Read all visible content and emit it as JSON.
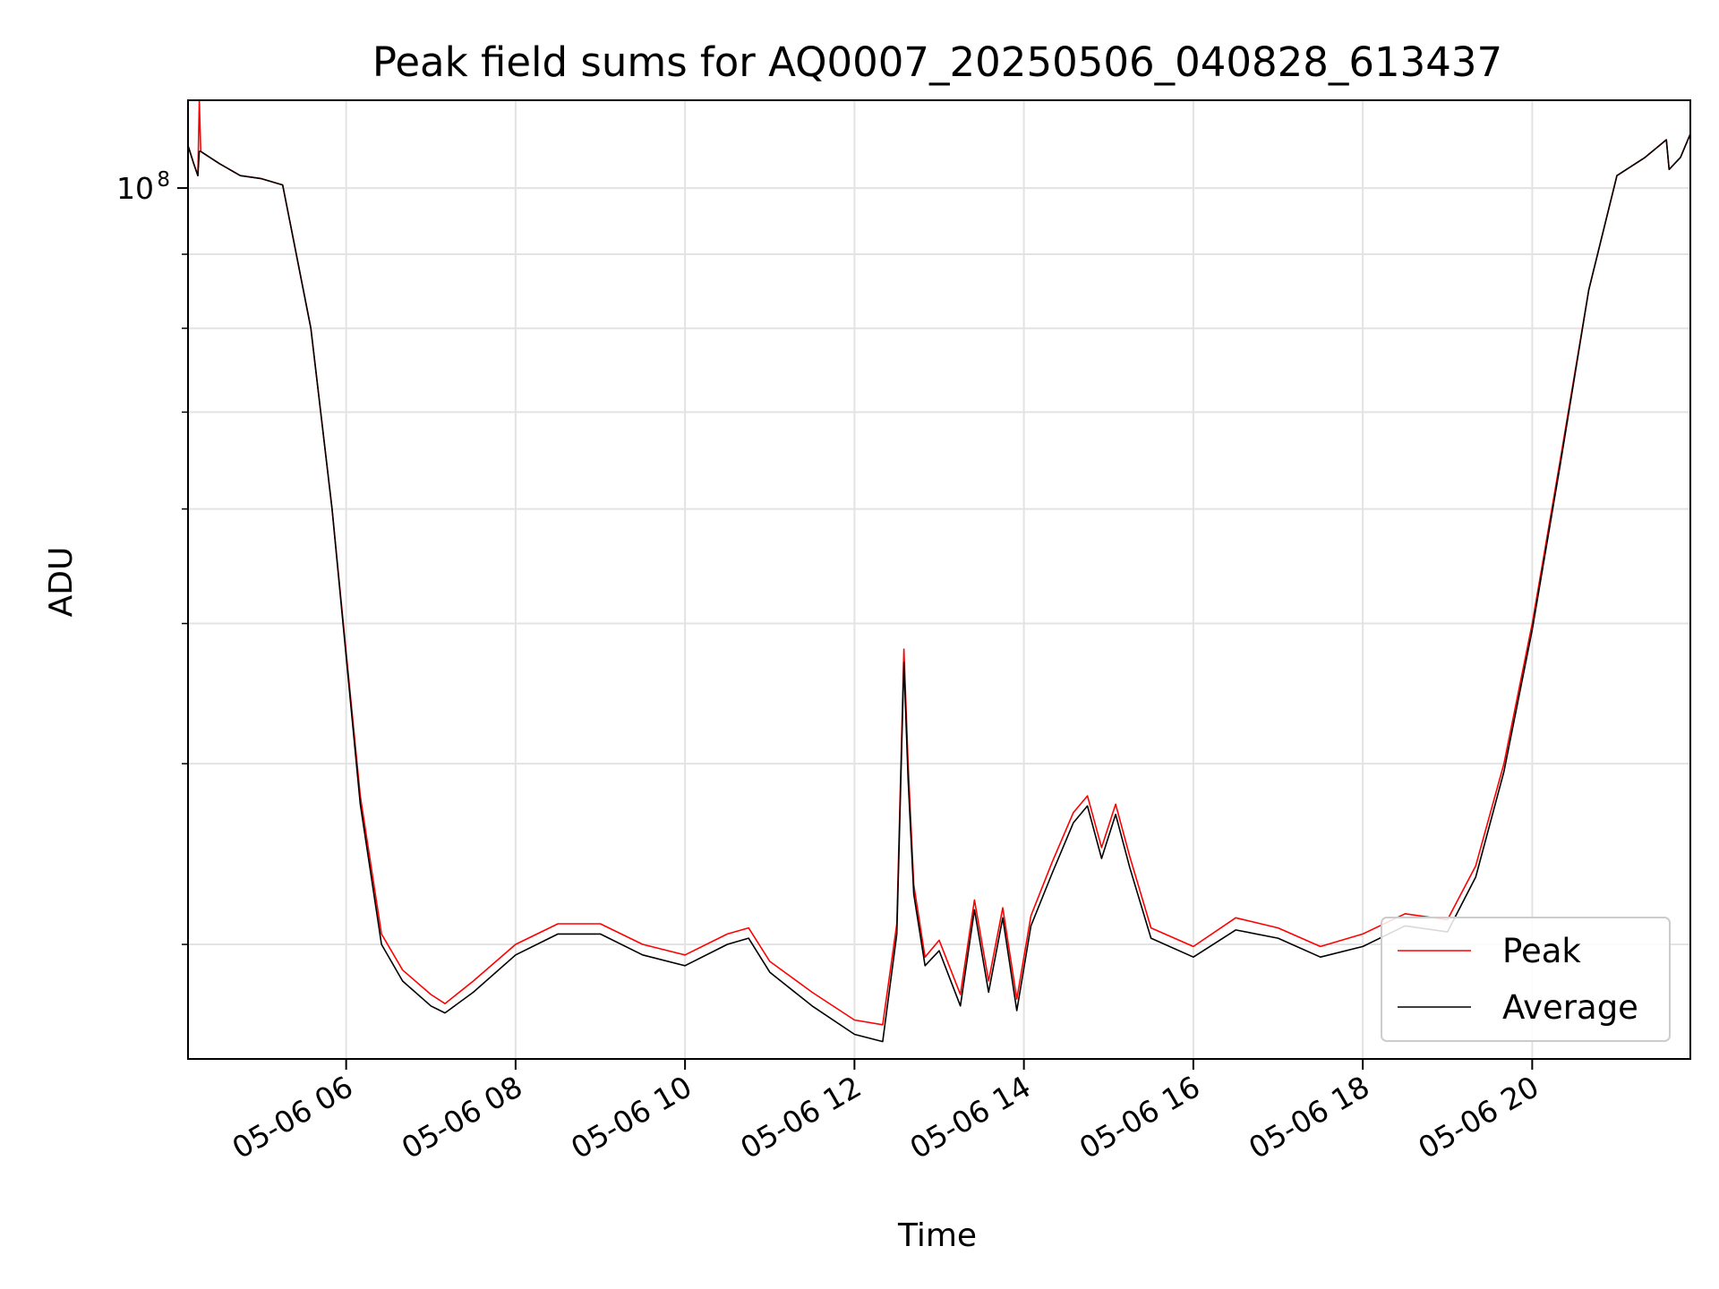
{
  "chart_data": {
    "type": "line",
    "title": "Peak field sums for AQ0007_20250506_040828_613437",
    "xlabel": "Time",
    "ylabel": "ADU",
    "y_scale": "log",
    "grid": true,
    "legend_position": "lower-right",
    "xlim": [
      "05-06 04:08",
      "05-06 21:52"
    ],
    "ylim": [
      25000000,
      115000000
    ],
    "x_ticks": [
      {
        "t": "05-06 06:00",
        "label": "05-06 06"
      },
      {
        "t": "05-06 08:00",
        "label": "05-06 08"
      },
      {
        "t": "05-06 10:00",
        "label": "05-06 10"
      },
      {
        "t": "05-06 12:00",
        "label": "05-06 12"
      },
      {
        "t": "05-06 14:00",
        "label": "05-06 14"
      },
      {
        "t": "05-06 16:00",
        "label": "05-06 16"
      },
      {
        "t": "05-06 18:00",
        "label": "05-06 18"
      },
      {
        "t": "05-06 20:00",
        "label": "05-06 20"
      }
    ],
    "y_major_tick": {
      "value": 100000000,
      "label_base": "10",
      "label_exp": "8"
    },
    "y_minor_ticks": [
      30000000,
      40000000,
      50000000,
      60000000,
      70000000,
      80000000,
      90000000
    ],
    "series": [
      {
        "name": "Peak",
        "color": "#ff0000",
        "x": [
          "05-06 04:08",
          "05-06 04:12",
          "05-06 04:15",
          "05-06 04:16",
          "05-06 04:17",
          "05-06 04:30",
          "05-06 04:45",
          "05-06 05:00",
          "05-06 05:15",
          "05-06 05:20",
          "05-06 05:35",
          "05-06 05:50",
          "05-06 06:10",
          "05-06 06:25",
          "05-06 06:40",
          "05-06 07:00",
          "05-06 07:10",
          "05-06 07:30",
          "05-06 08:00",
          "05-06 08:30",
          "05-06 09:00",
          "05-06 09:30",
          "05-06 10:00",
          "05-06 10:30",
          "05-06 10:45",
          "05-06 11:00",
          "05-06 11:30",
          "05-06 12:00",
          "05-06 12:20",
          "05-06 12:30",
          "05-06 12:35",
          "05-06 12:38",
          "05-06 12:42",
          "05-06 12:50",
          "05-06 13:00",
          "05-06 13:15",
          "05-06 13:25",
          "05-06 13:35",
          "05-06 13:45",
          "05-06 13:55",
          "05-06 14:05",
          "05-06 14:20",
          "05-06 14:35",
          "05-06 14:45",
          "05-06 14:55",
          "05-06 15:05",
          "05-06 15:15",
          "05-06 15:30",
          "05-06 16:00",
          "05-06 16:30",
          "05-06 17:00",
          "05-06 17:30",
          "05-06 18:00",
          "05-06 18:30",
          "05-06 19:00",
          "05-06 19:20",
          "05-06 19:40",
          "05-06 20:00",
          "05-06 20:20",
          "05-06 20:40",
          "05-06 21:00",
          "05-06 21:20",
          "05-06 21:35",
          "05-06 21:37",
          "05-06 21:45",
          "05-06 21:52"
        ],
        "values": [
          107000000,
          104000000,
          102000000,
          115000000,
          106000000,
          104000000,
          102000000,
          101500000,
          100500000,
          95000000,
          80000000,
          60000000,
          38000000,
          30500000,
          28800000,
          27700000,
          27300000,
          28300000,
          30000000,
          31000000,
          31000000,
          30000000,
          29500000,
          30500000,
          30800000,
          29200000,
          27800000,
          26600000,
          26400000,
          31000000,
          48000000,
          40000000,
          33000000,
          29400000,
          30200000,
          27700000,
          32200000,
          28300000,
          31800000,
          27500000,
          31400000,
          34200000,
          37000000,
          38000000,
          35000000,
          37500000,
          34500000,
          30800000,
          29900000,
          31300000,
          30800000,
          29900000,
          30500000,
          31500000,
          31200000,
          34000000,
          40000000,
          50000000,
          65000000,
          85000000,
          102000000,
          105000000,
          108000000,
          103000000,
          105000000,
          109000000
        ]
      },
      {
        "name": "Average",
        "color": "#000000",
        "x": [
          "05-06 04:08",
          "05-06 04:12",
          "05-06 04:15",
          "05-06 04:16",
          "05-06 04:17",
          "05-06 04:30",
          "05-06 04:45",
          "05-06 05:00",
          "05-06 05:15",
          "05-06 05:20",
          "05-06 05:35",
          "05-06 05:50",
          "05-06 06:10",
          "05-06 06:25",
          "05-06 06:40",
          "05-06 07:00",
          "05-06 07:10",
          "05-06 07:30",
          "05-06 08:00",
          "05-06 08:30",
          "05-06 09:00",
          "05-06 09:30",
          "05-06 10:00",
          "05-06 10:30",
          "05-06 10:45",
          "05-06 11:00",
          "05-06 11:30",
          "05-06 12:00",
          "05-06 12:20",
          "05-06 12:30",
          "05-06 12:35",
          "05-06 12:38",
          "05-06 12:42",
          "05-06 12:50",
          "05-06 13:00",
          "05-06 13:15",
          "05-06 13:25",
          "05-06 13:35",
          "05-06 13:45",
          "05-06 13:55",
          "05-06 14:05",
          "05-06 14:20",
          "05-06 14:35",
          "05-06 14:45",
          "05-06 14:55",
          "05-06 15:05",
          "05-06 15:15",
          "05-06 15:30",
          "05-06 16:00",
          "05-06 16:30",
          "05-06 17:00",
          "05-06 17:30",
          "05-06 18:00",
          "05-06 18:30",
          "05-06 19:00",
          "05-06 19:20",
          "05-06 19:40",
          "05-06 20:00",
          "05-06 20:20",
          "05-06 20:40",
          "05-06 21:00",
          "05-06 21:20",
          "05-06 21:35",
          "05-06 21:37",
          "05-06 21:45",
          "05-06 21:52"
        ],
        "values": [
          107000000,
          104000000,
          102000000,
          106000000,
          106000000,
          104000000,
          102000000,
          101500000,
          100500000,
          95000000,
          80000000,
          60000000,
          37500000,
          30000000,
          28300000,
          27200000,
          26900000,
          27800000,
          29500000,
          30500000,
          30500000,
          29500000,
          29000000,
          30000000,
          30300000,
          28700000,
          27200000,
          26000000,
          25700000,
          30500000,
          47000000,
          39000000,
          32500000,
          29000000,
          29700000,
          27200000,
          31700000,
          27800000,
          31300000,
          27000000,
          30900000,
          33600000,
          36400000,
          37400000,
          34400000,
          36900000,
          33900000,
          30300000,
          29400000,
          30700000,
          30300000,
          29400000,
          29900000,
          30900000,
          30600000,
          33400000,
          39500000,
          49500000,
          64500000,
          85000000,
          102000000,
          105000000,
          108000000,
          103000000,
          105000000,
          109000000
        ]
      }
    ]
  }
}
